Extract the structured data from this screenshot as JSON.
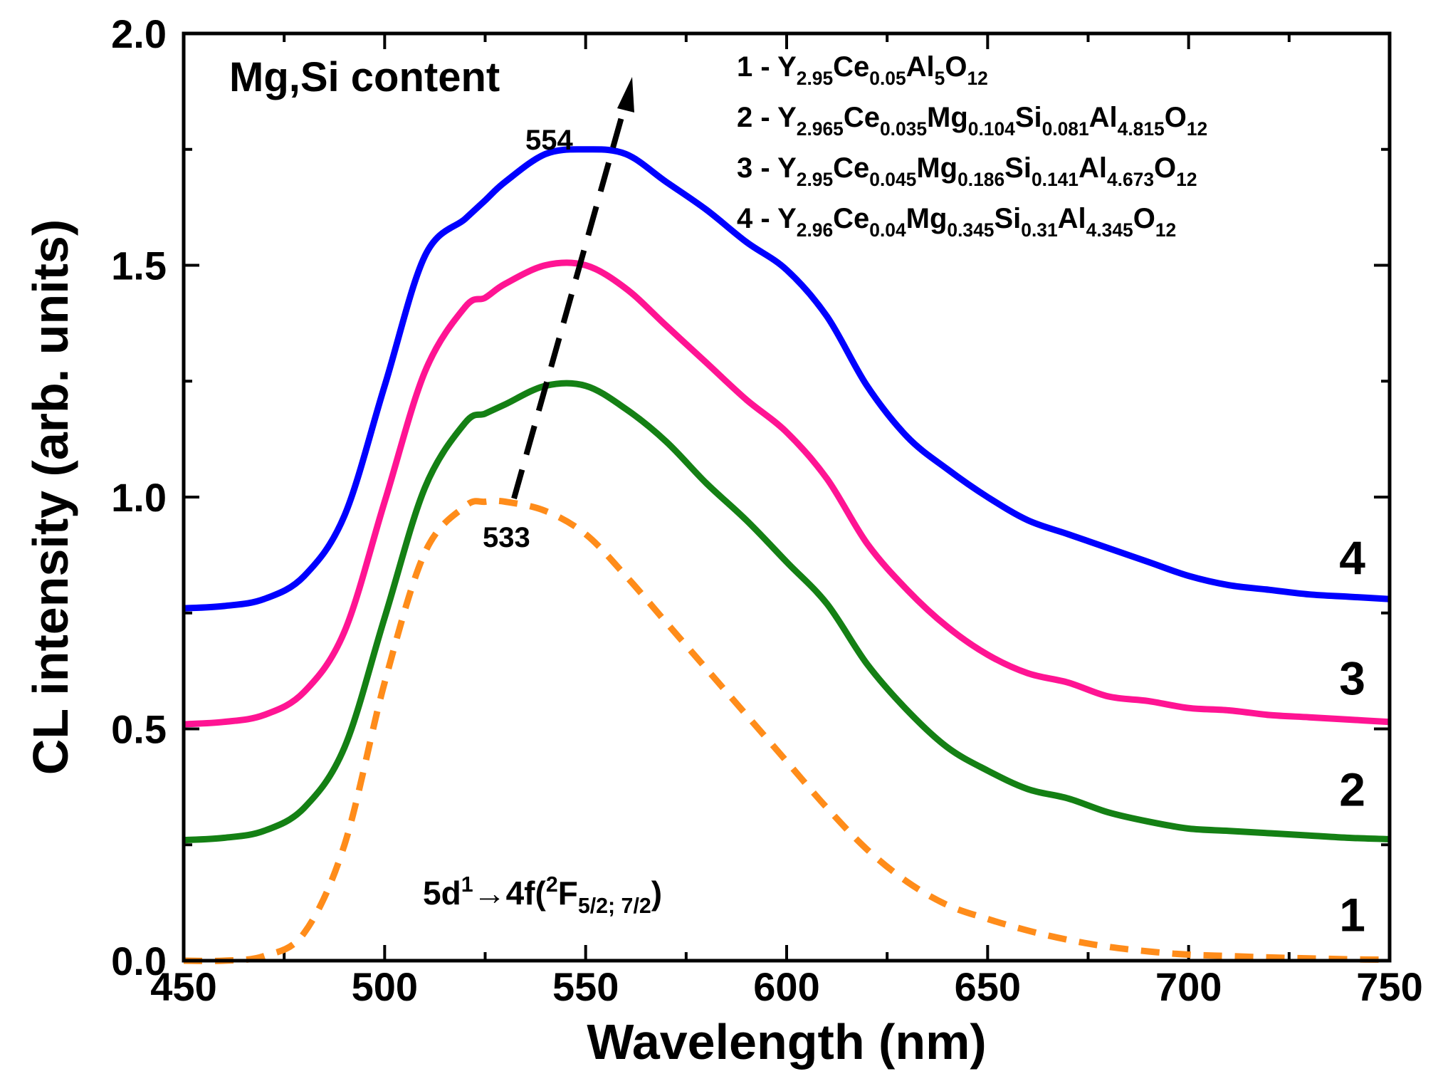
{
  "chart_data": {
    "type": "line",
    "xlabel": "Wavelength (nm)",
    "ylabel": "CL intensity (arb. units)",
    "xlim": [
      450,
      750
    ],
    "ylim": [
      0.0,
      2.0
    ],
    "xticks": [
      "450",
      "500",
      "550",
      "600",
      "650",
      "700",
      "750"
    ],
    "yticks": [
      "0.0",
      "0.5",
      "1.0",
      "1.5",
      "2.0"
    ],
    "grid": false,
    "x": [
      450,
      460,
      470,
      480,
      490,
      500,
      510,
      520,
      525,
      530,
      540,
      550,
      560,
      570,
      580,
      590,
      600,
      610,
      620,
      630,
      640,
      650,
      660,
      670,
      680,
      690,
      700,
      710,
      720,
      730,
      740,
      750
    ],
    "series": [
      {
        "id": "1",
        "color": "#ff8c1a",
        "dashed": true,
        "values": [
          0.0,
          0.0,
          0.01,
          0.06,
          0.25,
          0.6,
          0.88,
          0.98,
          0.99,
          0.99,
          0.97,
          0.92,
          0.83,
          0.73,
          0.63,
          0.53,
          0.43,
          0.33,
          0.24,
          0.17,
          0.12,
          0.09,
          0.065,
          0.045,
          0.03,
          0.02,
          0.013,
          0.01,
          0.007,
          0.005,
          0.003,
          0.002
        ]
      },
      {
        "id": "2",
        "color": "#148014",
        "dashed": false,
        "values": [
          0.26,
          0.265,
          0.28,
          0.33,
          0.46,
          0.74,
          1.02,
          1.16,
          1.18,
          1.2,
          1.24,
          1.24,
          1.19,
          1.12,
          1.03,
          0.95,
          0.86,
          0.77,
          0.64,
          0.54,
          0.46,
          0.41,
          0.37,
          0.35,
          0.32,
          0.3,
          0.285,
          0.28,
          0.275,
          0.27,
          0.265,
          0.262
        ]
      },
      {
        "id": "3",
        "color": "#ff1493",
        "dashed": false,
        "values": [
          0.51,
          0.515,
          0.53,
          0.58,
          0.71,
          0.99,
          1.27,
          1.41,
          1.43,
          1.46,
          1.5,
          1.5,
          1.45,
          1.37,
          1.29,
          1.21,
          1.14,
          1.04,
          0.9,
          0.8,
          0.72,
          0.66,
          0.62,
          0.6,
          0.57,
          0.56,
          0.545,
          0.54,
          0.53,
          0.525,
          0.52,
          0.515
        ]
      },
      {
        "id": "4",
        "color": "#0000ff",
        "dashed": false,
        "values": [
          0.76,
          0.765,
          0.78,
          0.83,
          0.96,
          1.24,
          1.52,
          1.6,
          1.64,
          1.68,
          1.74,
          1.75,
          1.74,
          1.68,
          1.62,
          1.55,
          1.49,
          1.39,
          1.24,
          1.13,
          1.06,
          1.0,
          0.95,
          0.92,
          0.89,
          0.86,
          0.83,
          0.81,
          0.8,
          0.79,
          0.785,
          0.78
        ]
      }
    ],
    "legend": [
      {
        "id": "1",
        "num": "1 - ",
        "parts": [
          [
            "Y",
            ""
          ],
          [
            "2.95",
            "sub"
          ],
          [
            "Ce",
            ""
          ],
          [
            "0.05",
            "sub"
          ],
          [
            "Al",
            ""
          ],
          [
            "5",
            "sub"
          ],
          [
            "O",
            ""
          ],
          [
            "12",
            "sub"
          ]
        ]
      },
      {
        "id": "2",
        "num": "2 - ",
        "parts": [
          [
            "Y",
            ""
          ],
          [
            "2.965",
            "sub"
          ],
          [
            "Ce",
            ""
          ],
          [
            "0.035",
            "sub"
          ],
          [
            "Mg",
            ""
          ],
          [
            "0.104",
            "sub"
          ],
          [
            "Si",
            ""
          ],
          [
            "0.081",
            "sub"
          ],
          [
            "Al",
            ""
          ],
          [
            "4.815",
            "sub"
          ],
          [
            "O",
            ""
          ],
          [
            "12",
            "sub"
          ]
        ]
      },
      {
        "id": "3",
        "num": "3 - ",
        "parts": [
          [
            "Y",
            ""
          ],
          [
            "2.95",
            "sub"
          ],
          [
            "Ce",
            ""
          ],
          [
            "0.045",
            "sub"
          ],
          [
            "Mg",
            ""
          ],
          [
            "0.186",
            "sub"
          ],
          [
            "Si",
            ""
          ],
          [
            "0.141",
            "sub"
          ],
          [
            "Al",
            ""
          ],
          [
            "4.673",
            "sub"
          ],
          [
            "O",
            ""
          ],
          [
            "12",
            "sub"
          ]
        ]
      },
      {
        "id": "4",
        "num": "4 - ",
        "parts": [
          [
            "Y",
            ""
          ],
          [
            "2.96",
            "sub"
          ],
          [
            "Ce",
            ""
          ],
          [
            "0.04",
            "sub"
          ],
          [
            "Mg",
            ""
          ],
          [
            "0.345",
            "sub"
          ],
          [
            "Si",
            ""
          ],
          [
            "0.31",
            "sub"
          ],
          [
            "Al",
            ""
          ],
          [
            "4.345",
            "sub"
          ],
          [
            "O",
            ""
          ],
          [
            "12",
            "sub"
          ]
        ]
      }
    ],
    "annotations": {
      "arrow_label": "Mg,Si content",
      "peak_high": "554",
      "peak_low": "533",
      "transition": [
        [
          "5d",
          ""
        ],
        [
          "1",
          "sup"
        ],
        [
          "→4f(",
          ""
        ],
        [
          "2",
          "sup"
        ],
        [
          "F",
          ""
        ],
        [
          "5/2; 7/2",
          "sub"
        ],
        [
          ")",
          ""
        ]
      ],
      "curve_labels": [
        "1",
        "2",
        "3",
        "4"
      ]
    }
  }
}
